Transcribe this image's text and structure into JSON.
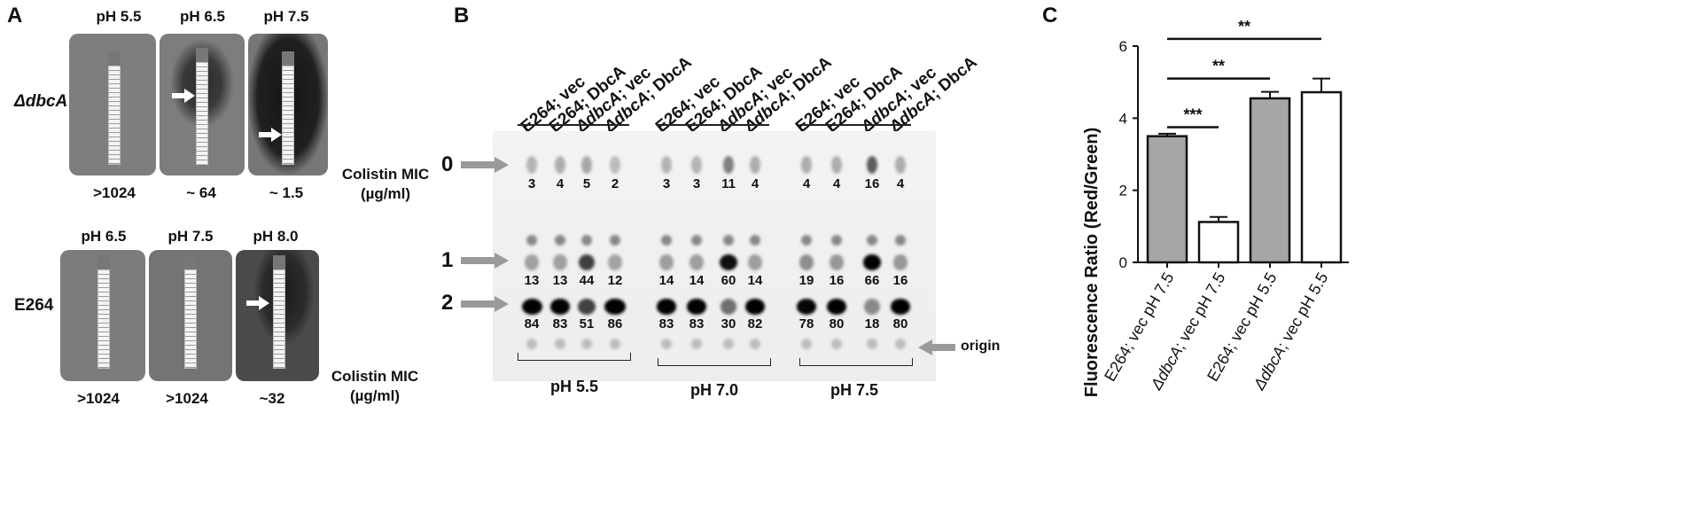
{
  "panelA": {
    "letter": "A",
    "row1": {
      "strain": "ΔdbcA",
      "ph_labels": [
        "pH 5.5",
        "pH 6.5",
        "pH 7.5"
      ],
      "mic_values": [
        ">1024",
        "~ 64",
        "~ 1.5"
      ],
      "mic_label_line1": "Colistin MIC",
      "mic_label_line2": "(µg/ml)"
    },
    "row2": {
      "strain": "E264",
      "ph_labels": [
        "pH 6.5",
        "pH 7.5",
        "pH 8.0"
      ],
      "mic_values": [
        ">1024",
        ">1024",
        "~32"
      ],
      "mic_label_line1": "Colistin MIC",
      "mic_label_line2": "(µg/ml)"
    }
  },
  "panelB": {
    "letter": "B",
    "lane_labels": [
      "E264; vec",
      "E264; DbcA",
      "ΔdbcA; vec",
      "ΔdbcA; DbcA",
      "E264; vec",
      "E264; DbcA",
      "ΔdbcA; vec",
      "ΔdbcA; DbcA",
      "E264; vec",
      "E264; DbcA",
      "ΔdbcA; vec",
      "ΔdbcA; DbcA"
    ],
    "row_markers": [
      "0",
      "1",
      "2"
    ],
    "row0_values": [
      "3",
      "4",
      "5",
      "2",
      "3",
      "3",
      "11",
      "4",
      "4",
      "4",
      "16",
      "4"
    ],
    "row1_values": [
      "13",
      "13",
      "44",
      "12",
      "14",
      "14",
      "60",
      "14",
      "19",
      "16",
      "66",
      "16"
    ],
    "row2_values": [
      "84",
      "83",
      "51",
      "86",
      "83",
      "83",
      "30",
      "82",
      "78",
      "80",
      "18",
      "80"
    ],
    "origin_label": "origin",
    "group_labels": [
      "pH 5.5",
      "pH 7.0",
      "pH 7.5"
    ]
  },
  "panelC": {
    "letter": "C",
    "chart_data": {
      "type": "bar",
      "categories": [
        "E264; vec pH 7.5",
        "ΔdbcA; vec pH 7.5",
        "E264; vec pH 5.5",
        "ΔdbcA; vec pH 5.5"
      ],
      "values": [
        3.5,
        1.12,
        4.55,
        4.72
      ],
      "errors": [
        0.07,
        0.14,
        0.18,
        0.38
      ],
      "fill_colors": [
        "#a6a6a6",
        "#ffffff",
        "#a6a6a6",
        "#ffffff"
      ],
      "ylabel": "Fluorescence Ratio (Red/Green)",
      "ylim": [
        0,
        6
      ],
      "yticks": [
        "0",
        "2",
        "4",
        "6"
      ],
      "significance": [
        {
          "from": 0,
          "to": 1,
          "label": "***"
        },
        {
          "from": 0,
          "to": 2,
          "label": "**"
        },
        {
          "from": 0,
          "to": 3,
          "label": "**"
        }
      ]
    }
  }
}
